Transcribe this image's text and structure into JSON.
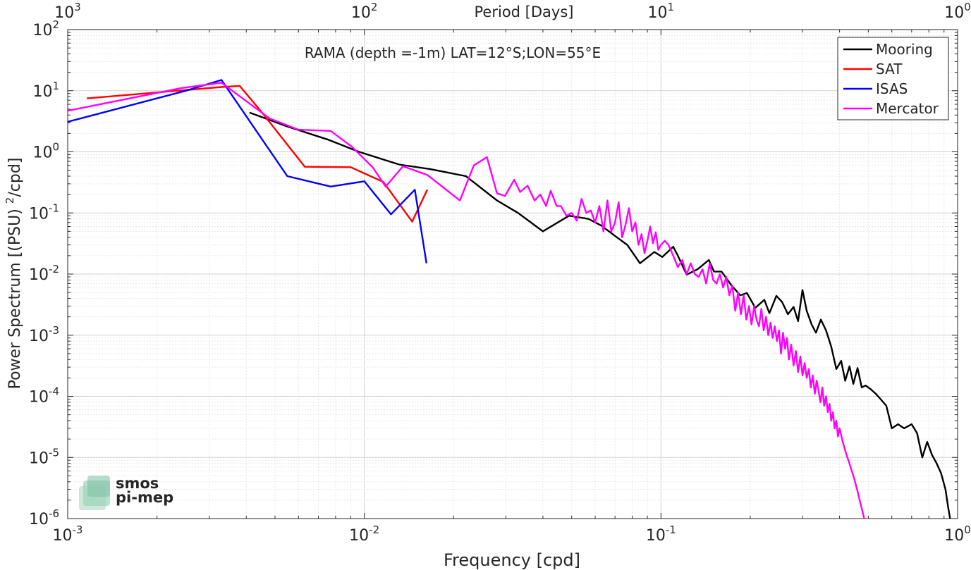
{
  "chart_data": {
    "type": "line",
    "title": "RAMA (depth =-1m) LAT=12°S;LON=55°E",
    "xlabel": "Frequency [cpd]",
    "ylabel": "Power Spectrum [(PSU)²/cpd]",
    "top_xlabel": "Period [Days]",
    "xscale": "log",
    "yscale": "log",
    "xlim": [
      0.001,
      1
    ],
    "ylim": [
      1e-06,
      100
    ],
    "grid": true,
    "legend_position": "top-right",
    "x_ticks": [
      {
        "value": 0.001,
        "base": "10",
        "exp": "-3"
      },
      {
        "value": 0.01,
        "base": "10",
        "exp": "-2"
      },
      {
        "value": 0.1,
        "base": "10",
        "exp": "-1"
      },
      {
        "value": 1,
        "base": "10",
        "exp": "0"
      }
    ],
    "top_ticks": [
      {
        "value": 0.001,
        "base": "10",
        "exp": "3"
      },
      {
        "value": 0.01,
        "base": "10",
        "exp": "2"
      },
      {
        "value": 0.1,
        "base": "10",
        "exp": "1"
      },
      {
        "value": 1,
        "base": "10",
        "exp": "0"
      }
    ],
    "y_ticks": [
      {
        "value": 100,
        "base": "10",
        "exp": "2"
      },
      {
        "value": 10,
        "base": "10",
        "exp": "1"
      },
      {
        "value": 1,
        "base": "10",
        "exp": "0"
      },
      {
        "value": 0.1,
        "base": "10",
        "exp": "-1"
      },
      {
        "value": 0.01,
        "base": "10",
        "exp": "-2"
      },
      {
        "value": 0.001,
        "base": "10",
        "exp": "-3"
      },
      {
        "value": 0.0001,
        "base": "10",
        "exp": "-4"
      },
      {
        "value": 1e-05,
        "base": "10",
        "exp": "-5"
      },
      {
        "value": 1e-06,
        "base": "10",
        "exp": "-6"
      }
    ],
    "series": [
      {
        "name": "Mooring",
        "color": "#000000",
        "points": [
          [
            0.0041,
            4.4
          ],
          [
            0.0055,
            2.6
          ],
          [
            0.0075,
            1.6
          ],
          [
            0.0096,
            1.0
          ],
          [
            0.0131,
            0.62
          ],
          [
            0.0167,
            0.52
          ],
          [
            0.022,
            0.4
          ],
          [
            0.028,
            0.16
          ],
          [
            0.033,
            0.1
          ],
          [
            0.04,
            0.05
          ],
          [
            0.047,
            0.08
          ],
          [
            0.049,
            0.09
          ],
          [
            0.057,
            0.08
          ],
          [
            0.063,
            0.062
          ],
          [
            0.071,
            0.04
          ],
          [
            0.077,
            0.03
          ],
          [
            0.085,
            0.015
          ],
          [
            0.095,
            0.023
          ],
          [
            0.101,
            0.019
          ],
          [
            0.11,
            0.028
          ],
          [
            0.114,
            0.02
          ],
          [
            0.122,
            0.0098
          ],
          [
            0.133,
            0.012
          ],
          [
            0.145,
            0.017
          ],
          [
            0.151,
            0.011
          ],
          [
            0.16,
            0.011
          ],
          [
            0.173,
            0.0065
          ],
          [
            0.185,
            0.0045
          ],
          [
            0.195,
            0.0049
          ],
          [
            0.208,
            0.0028
          ],
          [
            0.223,
            0.0038
          ],
          [
            0.232,
            0.0023
          ],
          [
            0.245,
            0.0044
          ],
          [
            0.256,
            0.0035
          ],
          [
            0.268,
            0.0022
          ],
          [
            0.28,
            0.0029
          ],
          [
            0.29,
            0.0017
          ],
          [
            0.3,
            0.0055
          ],
          [
            0.31,
            0.0025
          ],
          [
            0.322,
            0.0015
          ],
          [
            0.333,
            0.0011
          ],
          [
            0.346,
            0.0018
          ],
          [
            0.36,
            0.0012
          ],
          [
            0.375,
            0.00065
          ],
          [
            0.39,
            0.00028
          ],
          [
            0.405,
            0.00038
          ],
          [
            0.418,
            0.00018
          ],
          [
            0.432,
            0.00031
          ],
          [
            0.445,
            0.00016
          ],
          [
            0.46,
            0.00029
          ],
          [
            0.475,
            0.00014
          ],
          [
            0.49,
            0.00015
          ],
          [
            0.51,
            0.00013
          ],
          [
            0.53,
            0.00011
          ],
          [
            0.55,
            9e-05
          ],
          [
            0.575,
            7e-05
          ],
          [
            0.6,
            3e-05
          ],
          [
            0.63,
            3.5e-05
          ],
          [
            0.66,
            3e-05
          ],
          [
            0.7,
            3.5e-05
          ],
          [
            0.73,
            2.5e-05
          ],
          [
            0.76,
            1e-05
          ],
          [
            0.79,
            1.8e-05
          ],
          [
            0.82,
            1.1e-05
          ],
          [
            0.85,
            8e-06
          ],
          [
            0.88,
            5.5e-06
          ],
          [
            0.91,
            3e-06
          ],
          [
            0.93,
            1.5e-06
          ],
          [
            0.945,
            9.5e-07
          ]
        ]
      },
      {
        "name": "SAT",
        "color": "#ff0000",
        "points": [
          [
            0.00116,
            7.5
          ],
          [
            0.0033,
            11.5
          ],
          [
            0.0038,
            12.0
          ],
          [
            0.0045,
            4.5
          ],
          [
            0.0063,
            0.57
          ],
          [
            0.009,
            0.56
          ],
          [
            0.0116,
            0.32
          ],
          [
            0.0145,
            0.072
          ],
          [
            0.0163,
            0.24
          ]
        ]
      },
      {
        "name": "ISAS",
        "color": "#0000ff",
        "points": [
          [
            0.001,
            3.1
          ],
          [
            0.0025,
            10.0
          ],
          [
            0.0033,
            15.0
          ],
          [
            0.0055,
            0.4
          ],
          [
            0.0077,
            0.27
          ],
          [
            0.01,
            0.33
          ],
          [
            0.0123,
            0.095
          ],
          [
            0.0148,
            0.24
          ],
          [
            0.0162,
            0.015
          ]
        ]
      },
      {
        "name": "Mercator",
        "color": "#ff00ff",
        "points": [
          [
            0.001,
            4.7
          ],
          [
            0.0024,
            11.0
          ],
          [
            0.0033,
            13.5
          ],
          [
            0.0048,
            3.5
          ],
          [
            0.006,
            2.3
          ],
          [
            0.0077,
            2.2
          ],
          [
            0.0091,
            1.2
          ],
          [
            0.0107,
            0.55
          ],
          [
            0.0118,
            0.27
          ],
          [
            0.0135,
            0.58
          ],
          [
            0.0163,
            0.42
          ],
          [
            0.021,
            0.16
          ],
          [
            0.0234,
            0.6
          ],
          [
            0.0259,
            0.82
          ],
          [
            0.028,
            0.21
          ],
          [
            0.0298,
            0.19
          ],
          [
            0.032,
            0.35
          ],
          [
            0.0335,
            0.22
          ],
          [
            0.0355,
            0.28
          ],
          [
            0.0375,
            0.16
          ],
          [
            0.0392,
            0.2
          ],
          [
            0.041,
            0.13
          ],
          [
            0.0425,
            0.23
          ],
          [
            0.0445,
            0.13
          ],
          [
            0.046,
            0.13
          ],
          [
            0.048,
            0.09
          ],
          [
            0.05,
            0.1
          ],
          [
            0.052,
            0.075
          ],
          [
            0.054,
            0.17
          ],
          [
            0.056,
            0.1
          ],
          [
            0.058,
            0.11
          ],
          [
            0.06,
            0.07
          ],
          [
            0.062,
            0.13
          ],
          [
            0.064,
            0.05
          ],
          [
            0.066,
            0.16
          ],
          [
            0.068,
            0.05
          ],
          [
            0.07,
            0.07
          ],
          [
            0.072,
            0.15
          ],
          [
            0.074,
            0.04
          ],
          [
            0.076,
            0.065
          ],
          [
            0.078,
            0.12
          ],
          [
            0.08,
            0.05
          ],
          [
            0.082,
            0.07
          ],
          [
            0.084,
            0.03
          ],
          [
            0.086,
            0.045
          ],
          [
            0.088,
            0.022
          ],
          [
            0.09,
            0.035
          ],
          [
            0.092,
            0.06
          ],
          [
            0.094,
            0.032
          ],
          [
            0.096,
            0.048
          ],
          [
            0.098,
            0.025
          ],
          [
            0.1,
            0.03
          ],
          [
            0.103,
            0.035
          ],
          [
            0.106,
            0.03
          ],
          [
            0.11,
            0.02
          ],
          [
            0.114,
            0.013
          ],
          [
            0.118,
            0.017
          ],
          [
            0.122,
            0.01
          ],
          [
            0.126,
            0.015
          ],
          [
            0.13,
            0.01
          ],
          [
            0.134,
            0.009
          ],
          [
            0.138,
            0.012
          ],
          [
            0.142,
            0.007
          ],
          [
            0.146,
            0.015
          ],
          [
            0.15,
            0.008
          ],
          [
            0.154,
            0.007
          ],
          [
            0.158,
            0.01
          ],
          [
            0.162,
            0.006
          ],
          [
            0.166,
            0.009
          ],
          [
            0.17,
            0.0045
          ],
          [
            0.174,
            0.0065
          ],
          [
            0.178,
            0.0025
          ],
          [
            0.182,
            0.005
          ],
          [
            0.186,
            0.0022
          ],
          [
            0.19,
            0.0045
          ],
          [
            0.194,
            0.0018
          ],
          [
            0.198,
            0.003
          ],
          [
            0.202,
            0.0015
          ],
          [
            0.206,
            0.003
          ],
          [
            0.21,
            0.0018
          ],
          [
            0.214,
            0.0014
          ],
          [
            0.218,
            0.0027
          ],
          [
            0.222,
            0.0012
          ],
          [
            0.226,
            0.002
          ],
          [
            0.23,
            0.001
          ],
          [
            0.234,
            0.0016
          ],
          [
            0.238,
            0.0009
          ],
          [
            0.242,
            0.0014
          ],
          [
            0.246,
            0.0008
          ],
          [
            0.25,
            0.0012
          ],
          [
            0.254,
            0.0005
          ],
          [
            0.258,
            0.0011
          ],
          [
            0.262,
            0.0006
          ],
          [
            0.266,
            0.0009
          ],
          [
            0.27,
            0.0004
          ],
          [
            0.275,
            0.0007
          ],
          [
            0.28,
            0.00032
          ],
          [
            0.285,
            0.00055
          ],
          [
            0.29,
            0.00025
          ],
          [
            0.295,
            0.00045
          ],
          [
            0.3,
            0.00022
          ],
          [
            0.305,
            0.00035
          ],
          [
            0.31,
            0.0002
          ],
          [
            0.315,
            0.00028
          ],
          [
            0.32,
            0.00014
          ],
          [
            0.325,
            0.00022
          ],
          [
            0.33,
            0.00011
          ],
          [
            0.335,
            0.00018
          ],
          [
            0.34,
            0.00012
          ],
          [
            0.345,
            8e-05
          ],
          [
            0.35,
            0.00014
          ],
          [
            0.355,
            7e-05
          ],
          [
            0.36,
            0.0001
          ],
          [
            0.365,
            5.5e-05
          ],
          [
            0.37,
            7.5e-05
          ],
          [
            0.375,
            4e-05
          ],
          [
            0.38,
            5.5e-05
          ],
          [
            0.385,
            3e-05
          ],
          [
            0.39,
            4e-05
          ],
          [
            0.395,
            2.2e-05
          ],
          [
            0.4,
            3e-05
          ],
          [
            0.41,
            1.8e-05
          ],
          [
            0.42,
            1.2e-05
          ],
          [
            0.43,
            8.5e-06
          ],
          [
            0.44,
            6e-06
          ],
          [
            0.45,
            4.2e-06
          ],
          [
            0.46,
            2.8e-06
          ],
          [
            0.47,
            1.8e-06
          ],
          [
            0.48,
            1.2e-06
          ],
          [
            0.49,
            8e-07
          ]
        ]
      }
    ]
  },
  "watermark": {
    "line1": "smos",
    "line2": "pi-mep"
  },
  "colors": {
    "grid": "#dcdcdc",
    "axis": "#262626",
    "watermark": "#7cc0a4"
  }
}
